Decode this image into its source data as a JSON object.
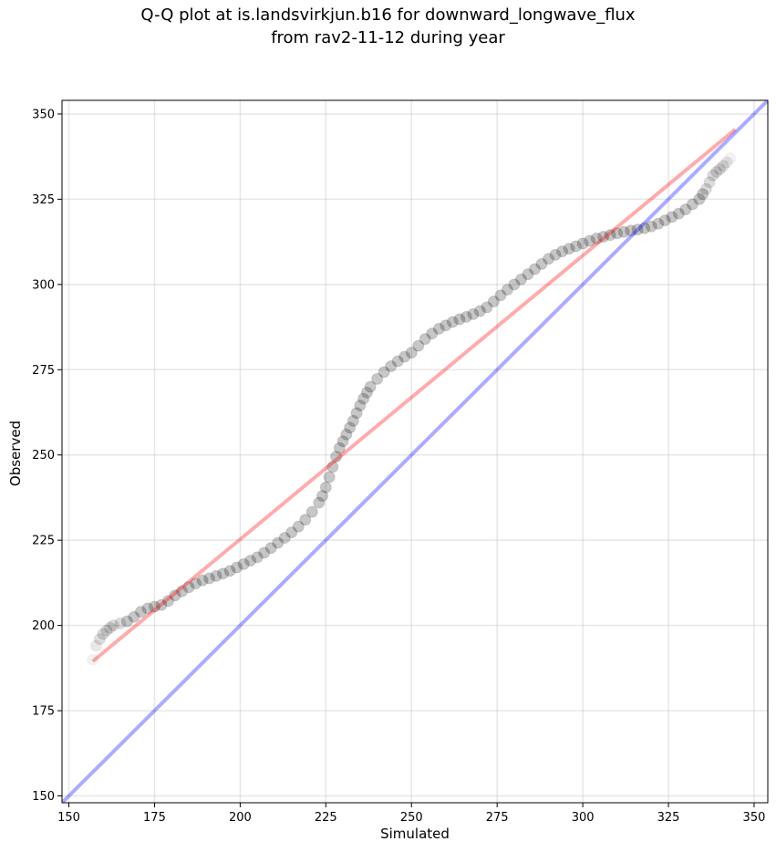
{
  "chart_data": {
    "type": "scatter",
    "title": "Q-Q plot at is.landsvirkjun.b16 for downward_longwave_flux",
    "subtitle": "from rav2-11-12 during year",
    "xlabel": "Simulated",
    "ylabel": "Observed",
    "xlim": [
      148,
      354
    ],
    "ylim": [
      148,
      354
    ],
    "xticks": [
      150,
      175,
      200,
      225,
      250,
      275,
      300,
      325,
      350
    ],
    "yticks": [
      150,
      175,
      200,
      225,
      250,
      275,
      300,
      325,
      350
    ],
    "grid": true,
    "series": [
      {
        "name": "quantiles",
        "kind": "scatter",
        "color": "#000000",
        "points": [
          [
            157,
            190
          ],
          [
            158,
            194
          ],
          [
            159,
            196
          ],
          [
            160,
            197.5
          ],
          [
            161,
            198.5
          ],
          [
            162,
            199.3
          ],
          [
            163,
            200
          ],
          [
            165,
            200.6
          ],
          [
            167,
            201.2
          ],
          [
            169,
            202.5
          ],
          [
            171,
            204
          ],
          [
            173,
            205
          ],
          [
            175,
            205.5
          ],
          [
            177,
            206
          ],
          [
            179,
            207.2
          ],
          [
            181,
            208.8
          ],
          [
            183,
            210
          ],
          [
            185,
            211.2
          ],
          [
            187,
            212.3
          ],
          [
            189,
            213.2
          ],
          [
            191,
            213.8
          ],
          [
            193,
            214.5
          ],
          [
            195,
            215.2
          ],
          [
            197,
            216
          ],
          [
            199,
            217
          ],
          [
            201,
            218
          ],
          [
            203,
            219
          ],
          [
            205,
            220
          ],
          [
            207,
            221.3
          ],
          [
            209,
            222.7
          ],
          [
            211,
            224.2
          ],
          [
            213,
            225.7
          ],
          [
            215,
            227.3
          ],
          [
            217,
            229
          ],
          [
            219,
            231
          ],
          [
            221,
            233.3
          ],
          [
            223,
            236
          ],
          [
            224,
            238
          ],
          [
            225,
            240.5
          ],
          [
            226,
            243.5
          ],
          [
            227,
            246.5
          ],
          [
            228,
            249.5
          ],
          [
            229,
            252
          ],
          [
            230,
            254
          ],
          [
            231,
            256
          ],
          [
            232,
            258
          ],
          [
            233,
            260
          ],
          [
            234,
            262.3
          ],
          [
            235,
            264.5
          ],
          [
            236,
            266.5
          ],
          [
            237,
            268.3
          ],
          [
            238,
            270
          ],
          [
            240,
            272.3
          ],
          [
            242,
            274.3
          ],
          [
            244,
            276
          ],
          [
            246,
            277.5
          ],
          [
            248,
            278.8
          ],
          [
            250,
            280
          ],
          [
            252,
            282
          ],
          [
            254,
            284
          ],
          [
            256,
            285.6
          ],
          [
            258,
            287
          ],
          [
            260,
            288
          ],
          [
            262,
            289
          ],
          [
            264,
            289.8
          ],
          [
            266,
            290.5
          ],
          [
            268,
            291.3
          ],
          [
            270,
            292.2
          ],
          [
            272,
            293.3
          ],
          [
            274,
            295
          ],
          [
            276,
            296.8
          ],
          [
            278,
            298.5
          ],
          [
            280,
            300
          ],
          [
            282,
            301.5
          ],
          [
            284,
            303
          ],
          [
            286,
            304.5
          ],
          [
            288,
            306
          ],
          [
            290,
            307.5
          ],
          [
            292,
            308.7
          ],
          [
            294,
            309.7
          ],
          [
            296,
            310.5
          ],
          [
            298,
            311.2
          ],
          [
            300,
            312
          ],
          [
            302,
            312.8
          ],
          [
            304,
            313.5
          ],
          [
            306,
            314
          ],
          [
            308,
            314.5
          ],
          [
            310,
            315
          ],
          [
            312,
            315.4
          ],
          [
            314,
            315.8
          ],
          [
            316,
            316.1
          ],
          [
            318,
            316.5
          ],
          [
            320,
            317
          ],
          [
            322,
            317.8
          ],
          [
            324,
            318.8
          ],
          [
            326,
            319.8
          ],
          [
            328,
            320.8
          ],
          [
            330,
            322
          ],
          [
            332,
            323.5
          ],
          [
            334,
            325
          ],
          [
            335,
            326.5
          ],
          [
            336,
            328
          ],
          [
            337,
            330
          ],
          [
            338,
            332
          ],
          [
            339,
            333
          ],
          [
            340,
            333.8
          ],
          [
            341,
            334.8
          ],
          [
            342,
            335.8
          ],
          [
            343,
            337
          ]
        ]
      },
      {
        "name": "fit line",
        "kind": "line",
        "color": "#ff0000",
        "x": [
          157,
          344.5
        ],
        "y": [
          189.5,
          345.5
        ]
      },
      {
        "name": "1:1 line",
        "kind": "line",
        "color": "#0000ff",
        "x": [
          148,
          354
        ],
        "y": [
          148,
          354
        ]
      }
    ]
  }
}
